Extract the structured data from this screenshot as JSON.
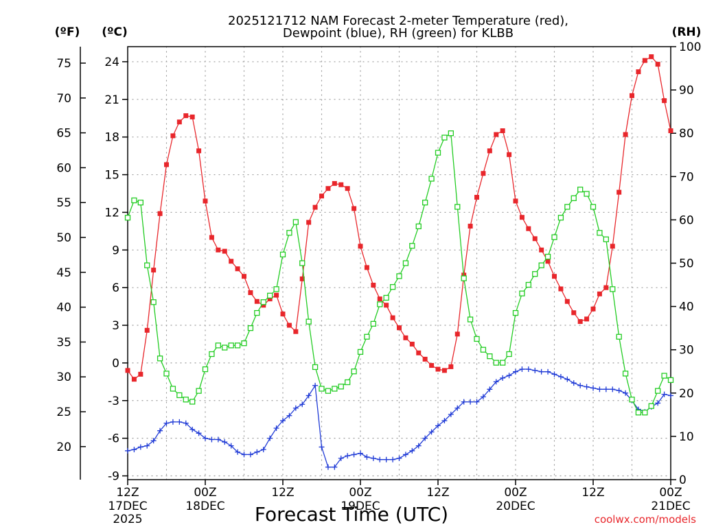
{
  "page": {
    "title_line1": "2025121712 NAM Forecast 2-meter Temperature (red),",
    "title_line2": "Dewpoint (blue), RH (green) for KLBB",
    "left_unit_f": "(ºF)",
    "left_unit_c": "(ºC)",
    "right_unit": "(RH)",
    "xaxis_title": "Forecast Time (UTC)",
    "credit": "coolwx.com/models"
  },
  "colors": {
    "temperature": "#e8262b",
    "dewpoint": "#1f3ad6",
    "rh": "#22cc22",
    "grid": "#9a9a9a"
  },
  "chart_data": {
    "type": "line",
    "title": "2025121712 NAM Forecast 2-meter Temperature (red), Dewpoint (blue), RH (green) for KLBB",
    "xlabel": "Forecast Time (UTC)",
    "ylabel_left": "(ºC)",
    "ylabel_left_secondary": "(ºF)",
    "ylabel_right": "(RH)",
    "xlim_hours": [
      0,
      84
    ],
    "ylim_c": [
      -9.3,
      25.2
    ],
    "ylim_rh": [
      0,
      100
    ],
    "step_hours": 1,
    "x_ticks": [
      {
        "h": 0,
        "line1": "12Z",
        "line2": "17DEC",
        "line3": "2025"
      },
      {
        "h": 12,
        "line1": "00Z",
        "line2": "18DEC",
        "line3": ""
      },
      {
        "h": 24,
        "line1": "12Z",
        "line2": "",
        "line3": ""
      },
      {
        "h": 36,
        "line1": "00Z",
        "line2": "19DEC",
        "line3": ""
      },
      {
        "h": 48,
        "line1": "12Z",
        "line2": "",
        "line3": ""
      },
      {
        "h": 60,
        "line1": "00Z",
        "line2": "20DEC",
        "line3": ""
      },
      {
        "h": 72,
        "line1": "12Z",
        "line2": "",
        "line3": ""
      },
      {
        "h": 84,
        "line1": "00Z",
        "line2": "21DEC",
        "line3": ""
      }
    ],
    "celsius_ticks": [
      "-9",
      "-6",
      "-3",
      "0",
      "3",
      "6",
      "9",
      "12",
      "15",
      "18",
      "21",
      "24"
    ],
    "fahrenheit_ticks": [
      "20",
      "25",
      "30",
      "35",
      "40",
      "45",
      "50",
      "55",
      "60",
      "65",
      "70",
      "75"
    ],
    "rh_ticks": [
      "0",
      "10",
      "20",
      "30",
      "40",
      "50",
      "60",
      "70",
      "80",
      "90",
      "100"
    ],
    "series": [
      {
        "name": "Temperature",
        "unit": "C",
        "marker": "square-filled",
        "values": [
          -0.6,
          -1.3,
          -0.9,
          2.6,
          7.4,
          11.9,
          15.8,
          18.1,
          19.2,
          19.7,
          19.6,
          16.9,
          12.9,
          10.0,
          9.0,
          8.9,
          8.1,
          7.5,
          6.9,
          5.6,
          4.9,
          4.6,
          5.1,
          5.4,
          3.9,
          3.0,
          2.5,
          6.7,
          11.2,
          12.4,
          13.3,
          13.9,
          14.3,
          14.2,
          13.9,
          12.3,
          9.3,
          7.6,
          6.2,
          5.1,
          4.6,
          3.6,
          2.8,
          2.0,
          1.5,
          0.8,
          0.3,
          -0.2,
          -0.5,
          -0.6,
          -0.3,
          2.3,
          7.0,
          10.9,
          13.2,
          15.1,
          16.9,
          18.2,
          18.5,
          16.6,
          12.9,
          11.6,
          10.7,
          9.9,
          9.0,
          8.1,
          6.9,
          5.9,
          4.9,
          4.0,
          3.3,
          3.5,
          4.3,
          5.5,
          6.0,
          9.3,
          13.6,
          18.2,
          21.3,
          23.2,
          24.1,
          24.4,
          23.8,
          20.9,
          18.5
        ]
      },
      {
        "name": "Dewpoint",
        "unit": "C",
        "marker": "plus",
        "values": [
          -7.0,
          -6.9,
          -6.7,
          -6.6,
          -6.2,
          -5.4,
          -4.8,
          -4.7,
          -4.7,
          -4.8,
          -5.3,
          -5.6,
          -6.0,
          -6.1,
          -6.1,
          -6.3,
          -6.6,
          -7.1,
          -7.3,
          -7.3,
          -7.1,
          -6.9,
          -6.0,
          -5.2,
          -4.6,
          -4.2,
          -3.6,
          -3.3,
          -2.6,
          -1.8,
          -6.7,
          -8.3,
          -8.3,
          -7.6,
          -7.4,
          -7.3,
          -7.2,
          -7.5,
          -7.6,
          -7.7,
          -7.7,
          -7.7,
          -7.6,
          -7.3,
          -7.0,
          -6.6,
          -6.0,
          -5.5,
          -5.0,
          -4.6,
          -4.1,
          -3.6,
          -3.1,
          -3.1,
          -3.1,
          -2.7,
          -2.1,
          -1.5,
          -1.2,
          -1.0,
          -0.7,
          -0.5,
          -0.5,
          -0.6,
          -0.7,
          -0.7,
          -0.9,
          -1.1,
          -1.3,
          -1.6,
          -1.8,
          -1.9,
          -2.0,
          -2.1,
          -2.1,
          -2.1,
          -2.2,
          -2.4,
          -3.0,
          -3.7,
          -3.9,
          -3.5,
          -3.2,
          -2.5,
          -2.6
        ]
      },
      {
        "name": "RH",
        "unit": "%",
        "marker": "square-open",
        "values": [
          60.5,
          64.5,
          64.0,
          49.5,
          41.0,
          28.0,
          24.5,
          21.0,
          19.5,
          18.5,
          18.0,
          20.5,
          25.5,
          29.0,
          31.0,
          30.5,
          31.0,
          31.0,
          31.5,
          35.0,
          38.5,
          41.0,
          42.5,
          44.0,
          52.0,
          57.0,
          59.5,
          50.0,
          36.5,
          26.0,
          21.0,
          20.5,
          21.0,
          21.5,
          22.5,
          25.0,
          29.5,
          33.0,
          36.0,
          40.5,
          42.0,
          44.5,
          47.0,
          50.0,
          54.0,
          58.5,
          64.0,
          69.5,
          75.5,
          79.0,
          80.0,
          63.0,
          46.5,
          37.0,
          32.5,
          30.0,
          28.5,
          27.0,
          27.0,
          29.0,
          38.5,
          43.0,
          45.0,
          47.5,
          49.5,
          51.5,
          56.0,
          60.5,
          63.0,
          65.0,
          67.0,
          66.0,
          63.0,
          57.0,
          55.5,
          44.0,
          33.0,
          24.5,
          18.5,
          15.5,
          15.5,
          17.0,
          20.5,
          24.0,
          23.0
        ]
      }
    ]
  }
}
